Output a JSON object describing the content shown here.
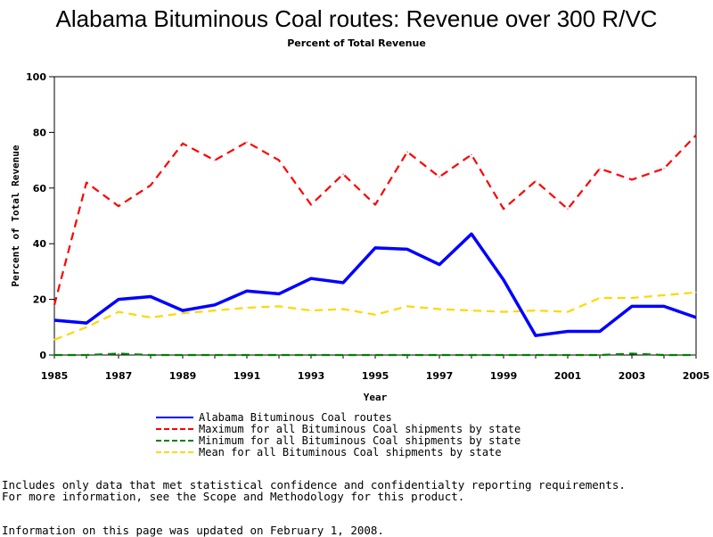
{
  "header": {
    "title": "Alabama Bituminous Coal routes: Revenue over 300 R/VC",
    "subtitle": "Percent of Total Revenue"
  },
  "chart_data": {
    "type": "line",
    "title": "Alabama Bituminous Coal routes: Revenue over 300 R/VC",
    "subtitle": "Percent of Total Revenue",
    "xlabel": "Year",
    "ylabel": "Percent of Total Revenue",
    "xlim": [
      1985,
      2005
    ],
    "ylim": [
      0,
      100
    ],
    "xticks": [
      "1985",
      "1987",
      "1989",
      "1991",
      "1993",
      "1995",
      "1997",
      "1999",
      "2001",
      "2003",
      "2005"
    ],
    "yticks": [
      "0",
      "20",
      "40",
      "60",
      "80",
      "100"
    ],
    "grid": false,
    "legend_position": "bottom",
    "x": [
      1985,
      1986,
      1987,
      1988,
      1989,
      1990,
      1991,
      1992,
      1993,
      1994,
      1995,
      1996,
      1997,
      1998,
      1999,
      2000,
      2001,
      2002,
      2003,
      2004,
      2005
    ],
    "series": [
      {
        "name": "Alabama Bituminous Coal routes",
        "color": "#0000ff",
        "style": "solid",
        "values": [
          12.5,
          11.5,
          20,
          21,
          16,
          18,
          23,
          22,
          27.5,
          26,
          38.5,
          38,
          32.5,
          43.5,
          27,
          7,
          8.5,
          8.5,
          17.5,
          17.5,
          13.5
        ]
      },
      {
        "name": "Maximum for all Bituminous Coal shipments by state",
        "color": "#ff0000",
        "style": "dashed",
        "values": [
          18,
          62,
          53.5,
          61,
          76,
          70,
          76.5,
          70,
          54,
          65,
          54,
          73,
          64,
          72,
          52.5,
          62.5,
          52.5,
          67,
          63,
          67,
          79
        ]
      },
      {
        "name": "Minimum for all Bituminous Coal shipments by state",
        "color": "#008000",
        "style": "dashed",
        "values": [
          0,
          0,
          0.5,
          0,
          0,
          0,
          0,
          0,
          0,
          0,
          0,
          0,
          0,
          0,
          0,
          0,
          0,
          0,
          0.5,
          0,
          0
        ]
      },
      {
        "name": "Mean for all Bituminous Coal shipments by state",
        "color": "#ffd700",
        "style": "dashed",
        "values": [
          5.5,
          10,
          15.5,
          13.5,
          15,
          16,
          17,
          17.5,
          16,
          16.5,
          14.5,
          17.5,
          16.5,
          16,
          15.5,
          16,
          15.5,
          20.5,
          20.5,
          21.5,
          22.5
        ]
      }
    ]
  },
  "notes": {
    "line1": "Includes only data that met statistical confidence and confidentialty reporting requirements.",
    "line2": "For more information, see the Scope and Methodology for this product.",
    "line3": "Information on this page was updated on February 1, 2008."
  }
}
